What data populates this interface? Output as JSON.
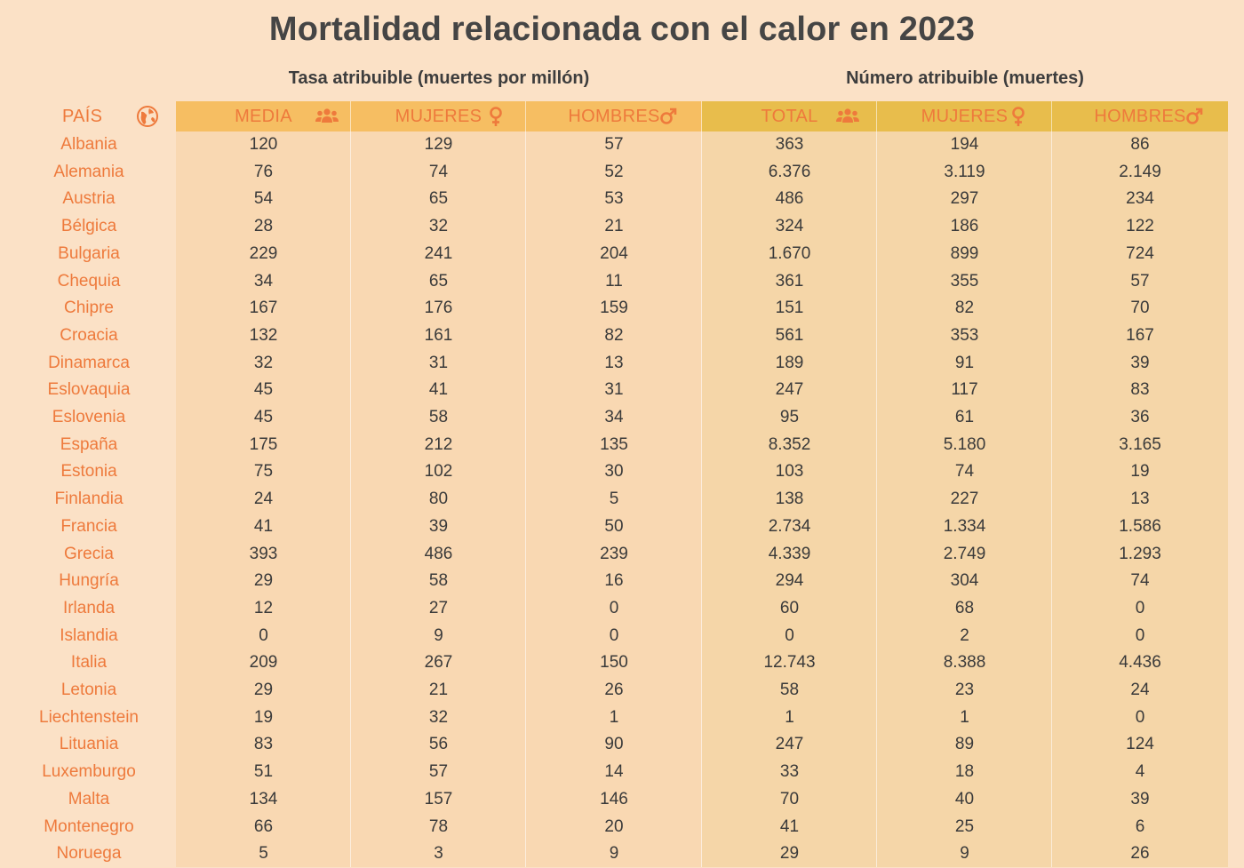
{
  "title": "Mortalidad relacionada con el calor en 2023",
  "groups": {
    "rate": "Tasa atribuible (muertes por millón)",
    "number": "Número atribuible (muertes)"
  },
  "headers": {
    "country": "PAÍS",
    "rate_mean": "MEDIA",
    "rate_women": "MUJERES",
    "rate_men": "HOMBRES",
    "num_total": "TOTAL",
    "num_women": "MUJERES",
    "num_men": "HOMBRES"
  },
  "icons": {
    "country": "globe-icon",
    "mean": "people-group-icon",
    "women": "female-symbol-icon",
    "men": "male-symbol-icon"
  },
  "colors": {
    "background": "#fbe1c6",
    "header_rate": "#f6be62",
    "header_number": "#e8bd4c",
    "accent_text": "#ee7a3c"
  },
  "chart_data": {
    "type": "table",
    "title": "Mortalidad relacionada con el calor en 2023",
    "columns": [
      "PAÍS",
      "MEDIA",
      "MUJERES",
      "HOMBRES",
      "TOTAL",
      "MUJERES",
      "HOMBRES"
    ],
    "rows": [
      [
        "Albania",
        "120",
        "129",
        "57",
        "363",
        "194",
        "86"
      ],
      [
        "Alemania",
        "76",
        "74",
        "52",
        "6.376",
        "3.119",
        "2.149"
      ],
      [
        "Austria",
        "54",
        "65",
        "53",
        "486",
        "297",
        "234"
      ],
      [
        "Bélgica",
        "28",
        "32",
        "21",
        "324",
        "186",
        "122"
      ],
      [
        "Bulgaria",
        "229",
        "241",
        "204",
        "1.670",
        "899",
        "724"
      ],
      [
        "Chequia",
        "34",
        "65",
        "11",
        "361",
        "355",
        "57"
      ],
      [
        "Chipre",
        "167",
        "176",
        "159",
        "151",
        "82",
        "70"
      ],
      [
        "Croacia",
        "132",
        "161",
        "82",
        "561",
        "353",
        "167"
      ],
      [
        "Dinamarca",
        "32",
        "31",
        "13",
        "189",
        "91",
        "39"
      ],
      [
        "Eslovaquia",
        "45",
        "41",
        "31",
        "247",
        "117",
        "83"
      ],
      [
        "Eslovenia",
        "45",
        "58",
        "34",
        "95",
        "61",
        "36"
      ],
      [
        "España",
        "175",
        "212",
        "135",
        "8.352",
        "5.180",
        "3.165"
      ],
      [
        "Estonia",
        "75",
        "102",
        "30",
        "103",
        "74",
        "19"
      ],
      [
        "Finlandia",
        "24",
        "80",
        "5",
        "138",
        "227",
        "13"
      ],
      [
        "Francia",
        "41",
        "39",
        "50",
        "2.734",
        "1.334",
        "1.586"
      ],
      [
        "Grecia",
        "393",
        "486",
        "239",
        "4.339",
        "2.749",
        "1.293"
      ],
      [
        "Hungría",
        "29",
        "58",
        "16",
        "294",
        "304",
        "74"
      ],
      [
        "Irlanda",
        "12",
        "27",
        "0",
        "60",
        "68",
        "0"
      ],
      [
        "Islandia",
        "0",
        "9",
        "0",
        "0",
        "2",
        "0"
      ],
      [
        "Italia",
        "209",
        "267",
        "150",
        "12.743",
        "8.388",
        "4.436"
      ],
      [
        "Letonia",
        "29",
        "21",
        "26",
        "58",
        "23",
        "24"
      ],
      [
        "Liechtenstein",
        "19",
        "32",
        "1",
        "1",
        "1",
        "0"
      ],
      [
        "Lituania",
        "83",
        "56",
        "90",
        "247",
        "89",
        "124"
      ],
      [
        "Luxemburgo",
        "51",
        "57",
        "14",
        "33",
        "18",
        "4"
      ],
      [
        "Malta",
        "134",
        "157",
        "146",
        "70",
        "40",
        "39"
      ],
      [
        "Montenegro",
        "66",
        "78",
        "20",
        "41",
        "25",
        "6"
      ],
      [
        "Noruega",
        "5",
        "3",
        "9",
        "29",
        "9",
        "26"
      ]
    ]
  }
}
